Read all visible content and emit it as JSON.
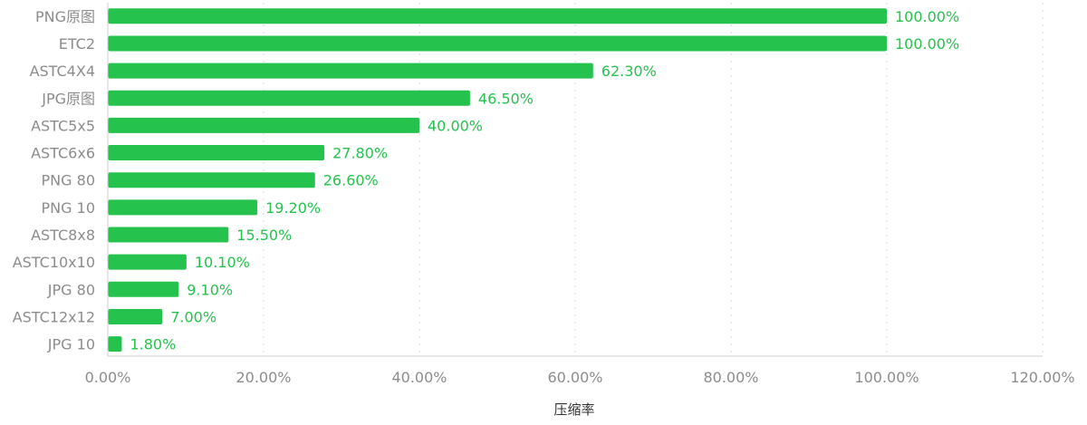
{
  "chart_data": {
    "type": "bar",
    "orientation": "horizontal",
    "categories": [
      "PNG原图",
      "ETC2",
      "ASTC4X4",
      "JPG原图",
      "ASTC5x5",
      "ASTC6x6",
      "PNG 80",
      "PNG 10",
      "ASTC8x8",
      "ASTC10x10",
      "JPG 80",
      "ASTC12x12",
      "JPG 10"
    ],
    "values": [
      100.0,
      100.0,
      62.3,
      46.5,
      40.0,
      27.8,
      26.6,
      19.2,
      15.5,
      10.1,
      9.1,
      7.0,
      1.8
    ],
    "value_labels": [
      "100.00%",
      "100.00%",
      "62.30%",
      "46.50%",
      "40.00%",
      "27.80%",
      "26.60%",
      "19.20%",
      "15.50%",
      "10.10%",
      "9.10%",
      "7.00%",
      "1.80%"
    ],
    "xlim": [
      0,
      120
    ],
    "x_ticks": [
      0,
      20,
      40,
      60,
      80,
      100,
      120
    ],
    "x_tick_labels": [
      "0.00%",
      "20.00%",
      "40.00%",
      "60.00%",
      "80.00%",
      "100.00%",
      "120.00%"
    ],
    "xlabel": "压缩率",
    "ylabel": "",
    "title": "",
    "grid": "vertical dotted",
    "legend": "none",
    "colors": {
      "bar": "#25c24d",
      "value_label": "#25c24d",
      "category_label": "#8c8c8c",
      "tick_label": "#8c8c8c",
      "axis_title": "#333333",
      "grid": "#d9d9d9"
    }
  }
}
